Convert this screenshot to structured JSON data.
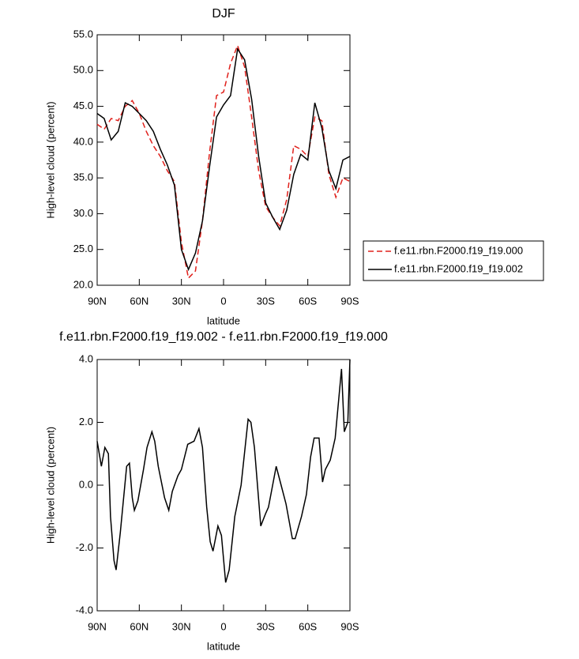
{
  "chart_data": [
    {
      "type": "line",
      "title": "DJF",
      "x_label": "latitude",
      "y_label": "High-level cloud (percent)",
      "x": [
        90,
        85,
        80,
        75,
        70,
        65,
        60,
        55,
        50,
        45,
        40,
        35,
        30,
        25,
        20,
        15,
        10,
        5,
        0,
        -5,
        -10,
        -15,
        -20,
        -25,
        -30,
        -35,
        -40,
        -45,
        -50,
        -55,
        -60,
        -65,
        -70,
        -75,
        -80,
        -85,
        -90
      ],
      "series": [
        {
          "name": "f.e11.rbn.F2000.f19_f19.000",
          "color": "#e0201b",
          "line_style": "dashed",
          "values": [
            42.5,
            41.8,
            43.3,
            43.0,
            45.0,
            45.8,
            44.0,
            41.5,
            39.5,
            38.0,
            36.0,
            34.5,
            26.0,
            21.0,
            22.0,
            29.0,
            38.5,
            46.5,
            47.0,
            51.0,
            53.5,
            50.5,
            43.5,
            36.0,
            31.0,
            29.5,
            28.3,
            32.0,
            39.5,
            39.0,
            38.0,
            43.5,
            43.0,
            35.5,
            32.3,
            35.0,
            34.5
          ]
        },
        {
          "name": "f.e11.rbn.F2000.f19_f19.002",
          "color": "#000000",
          "line_style": "solid",
          "values": [
            44.0,
            43.3,
            40.3,
            41.5,
            45.5,
            45.0,
            44.0,
            43.0,
            41.5,
            39.0,
            36.8,
            34.0,
            25.0,
            22.2,
            24.5,
            29.0,
            36.5,
            43.5,
            45.2,
            46.5,
            53.0,
            51.5,
            46.0,
            38.0,
            31.5,
            29.5,
            27.8,
            30.5,
            35.5,
            38.3,
            37.5,
            45.5,
            42.0,
            36.0,
            33.5,
            37.5,
            38.0
          ]
        }
      ],
      "xlim": [
        90,
        -90
      ],
      "xticks": [
        {
          "value": 90,
          "label": "90N"
        },
        {
          "value": 60,
          "label": "60N"
        },
        {
          "value": 30,
          "label": "30N"
        },
        0,
        {
          "value": -30,
          "label": "30S"
        },
        {
          "value": -60,
          "label": "60S"
        },
        {
          "value": -90,
          "label": "90S"
        }
      ],
      "ylim": [
        20,
        55
      ],
      "yticks": [
        {
          "value": 20,
          "label": "20.0"
        },
        {
          "value": 25,
          "label": "25.0"
        },
        {
          "value": 30,
          "label": "30.0"
        },
        {
          "value": 35,
          "label": "35.0"
        },
        {
          "value": 40,
          "label": "40.0"
        },
        {
          "value": 45,
          "label": "45.0"
        },
        {
          "value": 50,
          "label": "50.0"
        },
        {
          "value": 55,
          "label": "55.0"
        }
      ],
      "legend": "right"
    },
    {
      "type": "line",
      "title": "f.e11.rbn.F2000.f19_f19.002 - f.e11.rbn.F2000.f19_f19.000",
      "x_label": "latitude",
      "y_label": "High-level cloud (percent)",
      "x": [
        90,
        87,
        84.5,
        82,
        80.5,
        78,
        76.5,
        73.5,
        69,
        67,
        65,
        63.5,
        61,
        57,
        54.5,
        51,
        49,
        46.5,
        42,
        39,
        36.5,
        32.5,
        30,
        25.5,
        21,
        17.5,
        15,
        12,
        9.5,
        7.5,
        4,
        1.5,
        -1.5,
        -4,
        -8,
        -12.5,
        -17.5,
        -19.5,
        -22,
        -26.5,
        -30,
        -32,
        -37.5,
        -41,
        -44.5,
        -49,
        -51,
        -55.5,
        -59,
        -62,
        -64.5,
        -68,
        -70.5,
        -72.5,
        -76,
        -79.5,
        -84,
        -86,
        -88.5,
        -90
      ],
      "values": [
        1.4,
        0.6,
        1.2,
        1.0,
        -1.0,
        -2.4,
        -2.7,
        -1.5,
        0.6,
        0.7,
        -0.4,
        -0.8,
        -0.5,
        0.5,
        1.2,
        1.7,
        1.4,
        0.6,
        -0.4,
        -0.8,
        -0.2,
        0.3,
        0.5,
        1.3,
        1.4,
        1.8,
        1.2,
        -0.7,
        -1.8,
        -2.1,
        -1.3,
        -1.6,
        -3.1,
        -2.7,
        -1.0,
        0.0,
        2.1,
        2.0,
        1.2,
        -1.3,
        -0.9,
        -0.7,
        0.6,
        0.0,
        -0.6,
        -1.7,
        -1.7,
        -1.0,
        -0.3,
        0.9,
        1.5,
        1.5,
        0.1,
        0.5,
        0.8,
        1.5,
        3.7,
        1.7,
        2.0,
        4.0
      ],
      "color": "#000000",
      "xlim": [
        90,
        -90
      ],
      "xticks": [
        {
          "value": 90,
          "label": "90N"
        },
        {
          "value": 60,
          "label": "60N"
        },
        {
          "value": 30,
          "label": "30N"
        },
        0,
        {
          "value": -30,
          "label": "30S"
        },
        {
          "value": -60,
          "label": "60S"
        },
        {
          "value": -90,
          "label": "90S"
        }
      ],
      "ylim": [
        -4,
        4
      ],
      "yticks": [
        {
          "value": -4,
          "label": "-4.0"
        },
        {
          "value": -2,
          "label": "-2.0"
        },
        {
          "value": 0,
          "label": "0.0"
        },
        {
          "value": 2,
          "label": "2.0"
        },
        {
          "value": 4,
          "label": "4.0"
        }
      ]
    }
  ]
}
